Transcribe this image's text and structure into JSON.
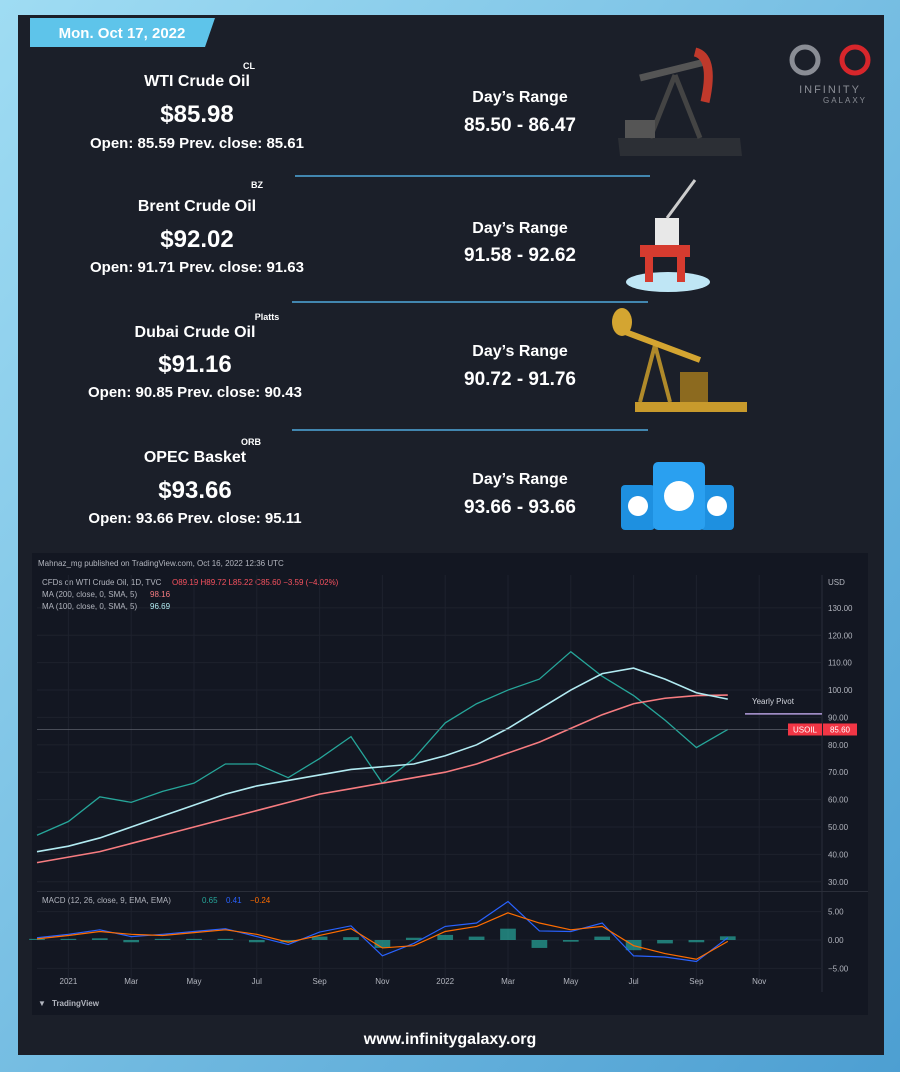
{
  "header": {
    "date": "Mon. Oct 17, 2022"
  },
  "logo": {
    "name": "INFINITY",
    "tagline": "GALAXY"
  },
  "quotes": [
    {
      "name": "WTI Crude Oil",
      "code": "CL",
      "price": "$85.98",
      "open_line": "Open: 85.59 Prev. close: 85.61",
      "range_label": "Day’s Range",
      "range": "85.50 - 86.47"
    },
    {
      "name": "Brent Crude Oil",
      "code": "BZ",
      "price": "$92.02",
      "open_line": "Open: 91.71 Prev. close: 91.63",
      "range_label": "Day’s Range",
      "range": "91.58 - 92.62"
    },
    {
      "name": "Dubai Crude Oil",
      "code": "Platts",
      "price": "$91.16",
      "open_line": "Open: 90.85 Prev. close: 90.43",
      "range_label": "Day’s Range",
      "range": "90.72 - 91.76"
    },
    {
      "name": "OPEC Basket",
      "code": "ORB",
      "price": "$93.66",
      "open_line": "Open: 93.66 Prev. close: 95.11",
      "range_label": "Day’s Range",
      "range": "93.66 - 93.66"
    }
  ],
  "chart_data": {
    "type": "line",
    "source": "Mahnaz_mg published on TradingView.com, Oct 16, 2022 12:36 UTC",
    "title": "CFDs on WTI Crude Oil, 1D, TVC",
    "ohlc": "O89.19 H89.72 L85.22 C85.60 −3.59 (−4.02%)",
    "currency": "USD",
    "brand": "TradingView",
    "x": [
      "2020-12",
      "2021-01",
      "2021-02",
      "2021-03",
      "2021-04",
      "2021-05",
      "2021-06",
      "2021-07",
      "2021-08",
      "2021-09",
      "2021-10",
      "2021-11",
      "2021-12",
      "2022-01",
      "2022-02",
      "2022-03",
      "2022-04",
      "2022-05",
      "2022-06",
      "2022-07",
      "2022-08",
      "2022-09",
      "2022-10"
    ],
    "series": [
      {
        "color": "#26a69a",
        "values": [
          47,
          52,
          61,
          59,
          63,
          66,
          73,
          73,
          68,
          75,
          83,
          66,
          75,
          88,
          95,
          100,
          104,
          114,
          105,
          98,
          89,
          79,
          85.6
        ]
      },
      {
        "name": "MA (200, close, 0, SMA, 5)",
        "color": "#f77c80",
        "last_value_label": "98.16",
        "values": [
          37,
          39,
          41,
          44,
          47,
          50,
          53,
          56,
          59,
          62,
          64,
          66,
          68,
          70,
          73,
          77,
          81,
          86,
          91,
          95,
          97,
          98,
          98.16
        ]
      },
      {
        "name": "MA (100, close, 0, SMA, 5)",
        "color": "#b2ebf2",
        "last_value_label": "96.69",
        "values": [
          41,
          43,
          46,
          50,
          54,
          58,
          62,
          65,
          67,
          69,
          71,
          72,
          73,
          76,
          80,
          86,
          93,
          100,
          106,
          108,
          104,
          99,
          96.69
        ]
      }
    ],
    "xlim": [
      "2020-12",
      "2023-01"
    ],
    "xticks": [
      {
        "value": "2021-01",
        "label": "2021"
      },
      {
        "value": "2021-03",
        "label": "Mar"
      },
      {
        "value": "2021-05",
        "label": "May"
      },
      {
        "value": "2021-07",
        "label": "Jul"
      },
      {
        "value": "2021-09",
        "label": "Sep"
      },
      {
        "value": "2021-11",
        "label": "Nov"
      },
      {
        "value": "2022-01",
        "label": "2022"
      },
      {
        "value": "2022-03",
        "label": "Mar"
      },
      {
        "value": "2022-05",
        "label": "May"
      },
      {
        "value": "2022-07",
        "label": "Jul"
      },
      {
        "value": "2022-09",
        "label": "Sep"
      },
      {
        "value": "2022-11",
        "label": "Nov"
      }
    ],
    "ylim": [
      27,
      142
    ],
    "yticks": [
      {
        "value": 30,
        "label": "30.00"
      },
      {
        "value": 40,
        "label": "40.00"
      },
      {
        "value": 50,
        "label": "50.00"
      },
      {
        "value": 60,
        "label": "60.00"
      },
      {
        "value": 70,
        "label": "70.00"
      },
      {
        "value": 80,
        "label": "80.00"
      },
      {
        "value": 90,
        "label": "90.00"
      },
      {
        "value": 100,
        "label": "100.00"
      },
      {
        "value": 110,
        "label": "110.00"
      },
      {
        "value": 120,
        "label": "120.00"
      },
      {
        "value": 130,
        "label": "130.00"
      }
    ],
    "annotations": [
      {
        "text": "Yearly Pivot",
        "value": 91.3,
        "color": "#b39ddb"
      }
    ],
    "last_price": {
      "symbol": "USOIL",
      "value": 85.6,
      "label": "85.60",
      "color": "#f23645"
    },
    "macd": {
      "title": "MACD (12, 26, close, 9, EMA, EMA)",
      "ylim": [
        -8.3,
        8.3
      ],
      "yticks": [
        {
          "value": 5,
          "label": "5.00"
        },
        {
          "value": 0,
          "label": "0.00"
        },
        {
          "value": -5,
          "label": "−5.00"
        }
      ],
      "series": [
        {
          "kind": "bar",
          "color": "#26a69a",
          "last_value_label": "0.65",
          "values": [
            0.2,
            0.2,
            0.3,
            -0.4,
            0.2,
            0.2,
            0.2,
            -0.4,
            -0.4,
            0.6,
            0.5,
            -1.4,
            0.4,
            0.9,
            0.6,
            2.0,
            -1.4,
            -0.3,
            0.6,
            -1.8,
            -0.6,
            -0.4,
            0.65
          ]
        },
        {
          "kind": "line",
          "color": "#2962ff",
          "last_value_label": "0.41",
          "values": [
            0.4,
            1.0,
            1.8,
            0.6,
            1.0,
            1.5,
            2.0,
            0.6,
            -0.8,
            1.4,
            2.5,
            -2.8,
            -0.6,
            2.4,
            3.0,
            6.8,
            1.6,
            1.5,
            3.0,
            -2.8,
            -3.0,
            -3.8,
            0.41
          ]
        },
        {
          "kind": "line",
          "color": "#ff6d00",
          "last_value_label": "−0.24",
          "values": [
            0.2,
            0.8,
            1.5,
            1.0,
            0.8,
            1.3,
            1.8,
            1.0,
            -0.4,
            0.8,
            2.0,
            -1.4,
            -1.0,
            1.5,
            2.4,
            4.8,
            3.0,
            1.8,
            2.4,
            -1.0,
            -2.4,
            -3.4,
            -0.24
          ]
        }
      ]
    }
  },
  "footer": {
    "url": "www.infinitygalaxy.org"
  }
}
